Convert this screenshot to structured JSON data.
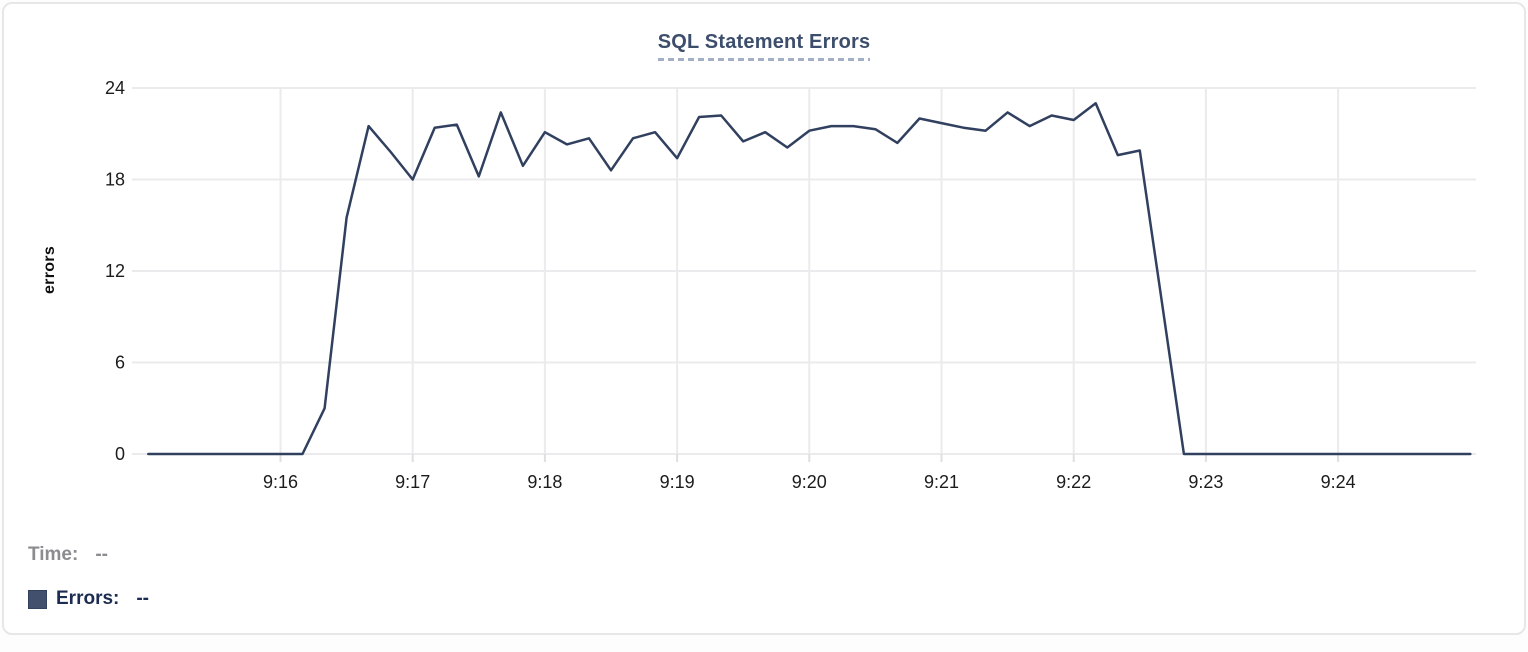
{
  "card": {
    "title": "SQL Statement Errors"
  },
  "legend": {
    "time_label": "Time:",
    "time_value": "--",
    "errors_label": "Errors:",
    "errors_value": "--"
  },
  "colors": {
    "line": "#31405f",
    "title": "#3d4e6c",
    "legend_swatch": "#42506e",
    "legend_time_text": "#8b8b90",
    "legend_errors_text": "#1d2c52",
    "gridline": "#ebebed",
    "tick_text": "#1c1c1e"
  },
  "chart_data": {
    "type": "line",
    "title": "SQL Statement Errors",
    "xlabel": "",
    "ylabel": "errors",
    "ylim": [
      0,
      24
    ],
    "y_ticks": [
      0,
      6,
      12,
      18,
      24
    ],
    "x_tick_labels": [
      "9:16",
      "9:17",
      "9:18",
      "9:19",
      "9:20",
      "9:21",
      "9:22",
      "9:23",
      "9:24"
    ],
    "x_range": [
      "9:15:00",
      "9:25:00"
    ],
    "sample_interval_seconds": 10,
    "grid": true,
    "legend_position": "bottom-left",
    "series": [
      {
        "name": "Errors",
        "color": "#31405f",
        "times": [
          "9:15:00",
          "9:15:10",
          "9:15:20",
          "9:15:30",
          "9:15:40",
          "9:15:50",
          "9:16:00",
          "9:16:10",
          "9:16:20",
          "9:16:30",
          "9:16:40",
          "9:16:50",
          "9:17:00",
          "9:17:10",
          "9:17:20",
          "9:17:30",
          "9:17:40",
          "9:17:50",
          "9:18:00",
          "9:18:10",
          "9:18:20",
          "9:18:30",
          "9:18:40",
          "9:18:50",
          "9:19:00",
          "9:19:10",
          "9:19:20",
          "9:19:30",
          "9:19:40",
          "9:19:50",
          "9:20:00",
          "9:20:10",
          "9:20:20",
          "9:20:30",
          "9:20:40",
          "9:20:50",
          "9:21:00",
          "9:21:10",
          "9:21:20",
          "9:21:30",
          "9:21:40",
          "9:21:50",
          "9:22:00",
          "9:22:10",
          "9:22:20",
          "9:22:30",
          "9:22:40",
          "9:22:50",
          "9:23:00",
          "9:23:10",
          "9:23:20",
          "9:23:30",
          "9:23:40",
          "9:23:50",
          "9:24:00",
          "9:24:10",
          "9:24:20",
          "9:24:30",
          "9:24:40",
          "9:24:50",
          "9:25:00"
        ],
        "values": [
          0,
          0,
          0,
          0,
          0,
          0,
          0,
          0,
          3,
          15.5,
          21.5,
          19.8,
          18,
          21.4,
          21.6,
          18.2,
          22.4,
          18.9,
          21.1,
          20.3,
          20.7,
          18.6,
          20.7,
          21.1,
          19.4,
          22.1,
          22.2,
          20.5,
          21.1,
          20.1,
          21.2,
          21.5,
          21.5,
          21.3,
          20.4,
          22,
          21.7,
          21.4,
          21.2,
          22.4,
          21.5,
          22.2,
          21.9,
          23,
          19.6,
          19.9,
          10,
          0,
          0,
          0,
          0,
          0,
          0,
          0,
          0,
          0,
          0,
          0,
          0,
          0,
          0
        ]
      }
    ]
  }
}
